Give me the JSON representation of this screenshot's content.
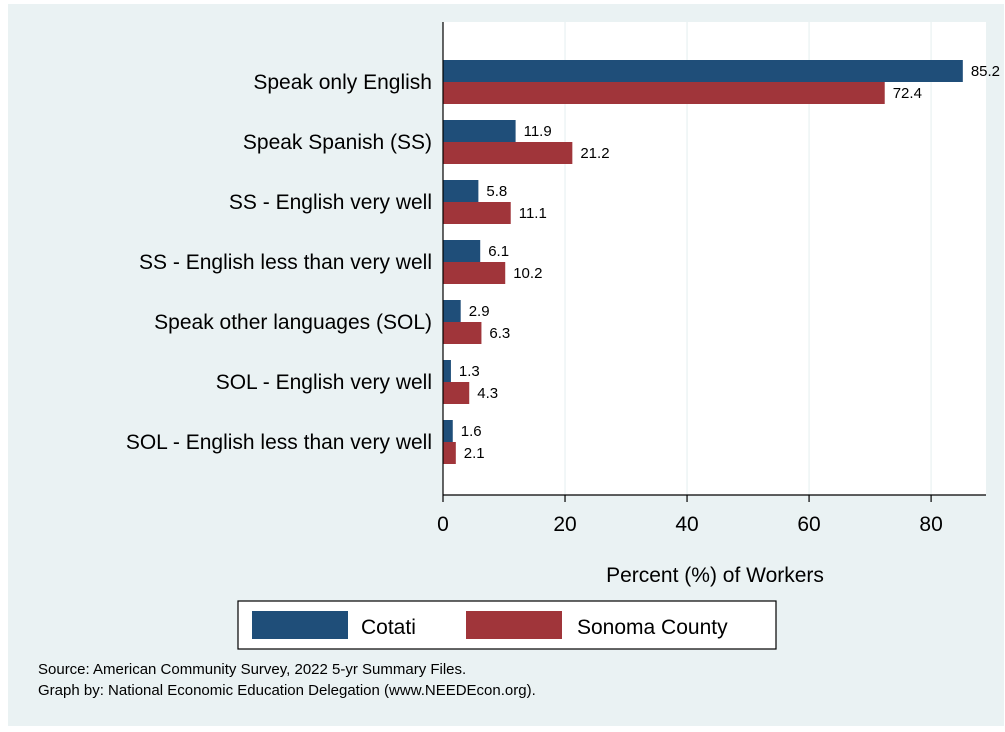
{
  "chart_data": {
    "type": "bar",
    "orientation": "horizontal",
    "categories": [
      "Speak only English",
      "Speak Spanish (SS)",
      "SS - English very well",
      "SS - English less than very well",
      "Speak other languages (SOL)",
      "SOL - English very well",
      "SOL - English less than very well"
    ],
    "series": [
      {
        "name": "Cotati",
        "color": "#1f4e79",
        "values": [
          85.2,
          11.9,
          5.8,
          6.1,
          2.9,
          1.3,
          1.6
        ]
      },
      {
        "name": "Sonoma County",
        "color": "#a0353a",
        "values": [
          72.4,
          21.2,
          11.1,
          10.2,
          6.3,
          4.3,
          2.1
        ]
      }
    ],
    "value_labels": [
      [
        "85.2",
        "11.9",
        "5.8",
        "6.1",
        "2.9",
        "1.3",
        "1.6"
      ],
      [
        "72.4",
        "21.2",
        "11.1",
        "10.2",
        "6.3",
        "4.3",
        "2.1"
      ]
    ],
    "xlabel": "Percent (%) of Workers",
    "xlim": [
      0,
      89
    ],
    "xticks": [
      0,
      20,
      40,
      60,
      80
    ],
    "xtick_labels": [
      "0",
      "20",
      "40",
      "60",
      "80"
    ],
    "grid": true,
    "legend_position": "bottom",
    "note_lines": [
      "Source: American Community Survey, 2022 5-yr Summary Files.",
      "Graph by: National Economic Education Delegation (www.NEEDEcon.org)."
    ],
    "colors": {
      "background": "#eaf2f3",
      "plot_background": "#ffffff",
      "grid": "#eaf2f3"
    }
  }
}
